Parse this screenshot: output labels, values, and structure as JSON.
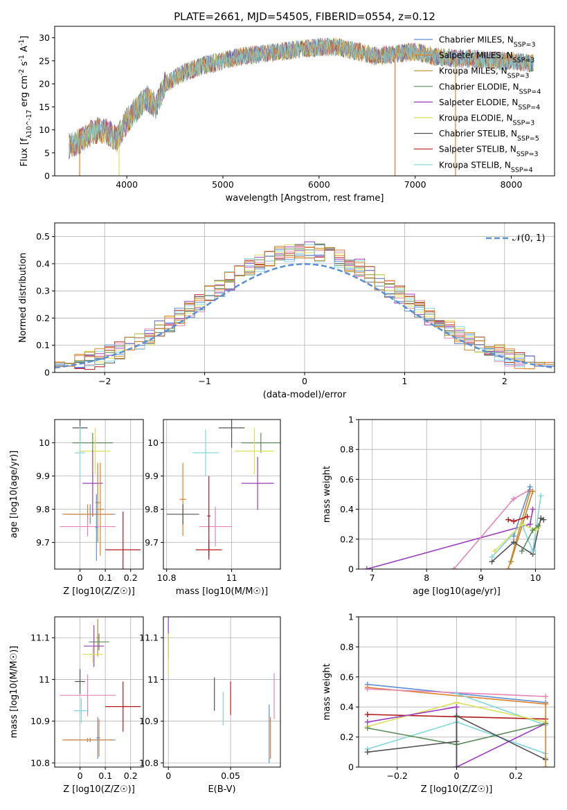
{
  "figure": {
    "title": "PLATE=2661, MJD=54505, FIBERID=0554, z=0.12"
  },
  "colors": [
    "#5b8fd6",
    "#e0802a",
    "#b8862b",
    "#5b8a5b",
    "#9a3bbf",
    "#d8e058",
    "#505050",
    "#b01818",
    "#7fd6dc",
    "#e684b8"
  ],
  "chart_data": [
    {
      "type": "line",
      "id": "spectrum",
      "xlabel": "wavelength [Angstrom, rest frame]",
      "ylabel": "Flux [f_λ10^-17 erg cm^-2 s^-1 A^-1]",
      "xlim": [
        3250,
        8450
      ],
      "ylim": [
        0,
        32.5
      ],
      "xticks": [
        4000,
        5000,
        6000,
        7000,
        8000
      ],
      "yticks": [
        0,
        5,
        10,
        15,
        20,
        25,
        30
      ],
      "continuum": {
        "x": [
          3400,
          3500,
          3600,
          3700,
          3800,
          3900,
          4000,
          4100,
          4200,
          4300,
          4400,
          4600,
          4800,
          5000,
          5200,
          5400,
          5600,
          5800,
          6000,
          6200,
          6400,
          6600,
          6800,
          7000,
          7200,
          7400,
          7600,
          7800,
          8000,
          8200
        ],
        "y": [
          6.5,
          7.5,
          9,
          10,
          9.5,
          8,
          12,
          14.5,
          17,
          15,
          20,
          22.5,
          24,
          25,
          26,
          26.5,
          27,
          27.5,
          28,
          28,
          27,
          26,
          26.5,
          27,
          26,
          25.5,
          25.5,
          25,
          25,
          24.5
        ]
      },
      "legend": [
        "Chabrier MILES, N_SSP=3",
        "Salpeter MILES, N_SSP=3",
        "Kroupa MILES, N_SSP=3",
        "Chabrier ELODIE, N_SSP=4",
        "Salpeter ELODIE, N_SSP=4",
        "Kroupa ELODIE, N_SSP=3",
        "Chabrier STELIB, N_SSP=5",
        "Salpeter STELIB, N_SSP=3",
        "Kroupa STELIB, N_SSP=4"
      ],
      "legend_position": "upper-right"
    },
    {
      "type": "histogram",
      "id": "residuals",
      "xlabel": "(data-model)/error",
      "ylabel": "Normed distribution",
      "xlim": [
        -2.5,
        2.5
      ],
      "ylim": [
        0,
        0.55
      ],
      "xticks": [
        -2,
        -1,
        0,
        1,
        2
      ],
      "yticks": [
        0.0,
        0.1,
        0.2,
        0.3,
        0.4,
        0.5
      ],
      "bin_width": 0.1,
      "reference_curve": "𝒩(0, 1)",
      "legend_position": "upper-right"
    },
    {
      "type": "scatter-errorbar",
      "id": "Z-age",
      "xlabel": "Z [log10(Z/Z☉)]",
      "ylabel": "age  [log10(age/yr)]",
      "xlim": [
        -0.1,
        0.25
      ],
      "ylim": [
        9.62,
        10.07
      ],
      "xticks": [
        0.0,
        0.1,
        0.2
      ],
      "yticks": [
        9.7,
        9.8,
        9.9,
        10.0
      ],
      "points": [
        {
          "x": 0.0,
          "y": 10.045,
          "xerr": 0.03,
          "yerr": 0.045,
          "c": 6
        },
        {
          "x": 0.05,
          "y": 10.0,
          "xerr": 0.08,
          "yerr": 0.03,
          "c": 3
        },
        {
          "x": 0.0,
          "y": 9.97,
          "xerr": 0.02,
          "yerr": 0.08,
          "c": 8
        },
        {
          "x": 0.06,
          "y": 9.975,
          "xerr": 0.06,
          "yerr": 0.07,
          "c": 5
        },
        {
          "x": 0.05,
          "y": 9.878,
          "xerr": 0.04,
          "yerr": 0.1,
          "c": 4
        },
        {
          "x": 0.08,
          "y": 9.8,
          "xerr": 0.015,
          "yerr": 0.14,
          "c": 1
        },
        {
          "x": 0.07,
          "y": 9.82,
          "xerr": 0.01,
          "yerr": 0.12,
          "c": 2
        },
        {
          "x": 0.04,
          "y": 9.785,
          "xerr": 0.1,
          "yerr": 0.03,
          "c": 0
        },
        {
          "x": 0.03,
          "y": 9.785,
          "xerr": 0.1,
          "yerr": 0.03,
          "c": 1
        },
        {
          "x": 0.03,
          "y": 9.748,
          "xerr": 0.11,
          "yerr": 0.03,
          "c": 9
        },
        {
          "x": 0.17,
          "y": 9.678,
          "xerr": 0.07,
          "yerr": 0.115,
          "c": 7
        },
        {
          "x": 0.065,
          "y": 9.745,
          "xerr": 0.005,
          "yerr": 0.1,
          "c": 0
        }
      ]
    },
    {
      "type": "scatter-errorbar",
      "id": "mass-age",
      "xlabel": "mass [log10(M/M☉)]",
      "ylabel": "",
      "xlim": [
        10.79,
        11.15
      ],
      "ylim": [
        9.62,
        10.07
      ],
      "xticks": [
        10.8,
        11.0
      ],
      "yticks": [
        9.7,
        9.8,
        9.9,
        10.0
      ],
      "points": [
        {
          "x": 11.0,
          "y": 10.045,
          "xerr": 0.04,
          "yerr": 0.06,
          "c": 6
        },
        {
          "x": 11.09,
          "y": 10.0,
          "xerr": 0.06,
          "yerr": 0.03,
          "c": 3
        },
        {
          "x": 10.92,
          "y": 9.97,
          "xerr": 0.04,
          "yerr": 0.07,
          "c": 8
        },
        {
          "x": 11.07,
          "y": 9.975,
          "xerr": 0.06,
          "yerr": 0.07,
          "c": 5
        },
        {
          "x": 11.08,
          "y": 9.878,
          "xerr": 0.05,
          "yerr": 0.08,
          "c": 4
        },
        {
          "x": 10.85,
          "y": 9.83,
          "xerr": 0.01,
          "yerr": 0.11,
          "c": 1
        },
        {
          "x": 10.85,
          "y": 9.785,
          "xerr": 0.05,
          "yerr": 0.03,
          "c": 6
        },
        {
          "x": 10.95,
          "y": 9.748,
          "xerr": 0.05,
          "yerr": 0.06,
          "c": 9
        },
        {
          "x": 10.93,
          "y": 9.78,
          "xerr": 0.005,
          "yerr": 0.12,
          "c": 7
        },
        {
          "x": 10.93,
          "y": 9.678,
          "xerr": 0.04,
          "yerr": 0.03,
          "c": 7
        }
      ]
    },
    {
      "type": "line",
      "id": "age-massweight",
      "xlabel": "age  [log10(age/yr)]",
      "ylabel": "mass weight",
      "xlim": [
        6.75,
        10.35
      ],
      "ylim": [
        0,
        1.0
      ],
      "xticks": [
        7,
        8,
        9,
        10
      ],
      "yticks": [
        0.0,
        0.2,
        0.4,
        0.6,
        0.8,
        1.0
      ],
      "series": [
        {
          "c": 4,
          "x": [
            6.9,
            9.9,
            9.95
          ],
          "y": [
            0.0,
            0.3,
            0.4
          ]
        },
        {
          "c": 9,
          "x": [
            8.5,
            9.6,
            9.9
          ],
          "y": [
            0.0,
            0.47,
            0.53
          ]
        },
        {
          "c": 1,
          "x": [
            9.5,
            9.9
          ],
          "y": [
            0.0,
            0.52
          ]
        },
        {
          "c": 2,
          "x": [
            9.55,
            9.95
          ],
          "y": [
            0.05,
            0.52
          ]
        },
        {
          "c": 0,
          "x": [
            9.6,
            9.9
          ],
          "y": [
            0.22,
            0.55
          ]
        },
        {
          "c": 7,
          "x": [
            9.5,
            9.6,
            9.85
          ],
          "y": [
            0.33,
            0.32,
            0.35
          ]
        },
        {
          "c": 6,
          "x": [
            9.2,
            9.6,
            9.95,
            10.1,
            10.15
          ],
          "y": [
            0.05,
            0.18,
            0.1,
            0.34,
            0.33
          ]
        },
        {
          "c": 8,
          "x": [
            9.2,
            9.75,
            9.95,
            10.1
          ],
          "y": [
            0.08,
            0.3,
            0.12,
            0.49
          ]
        },
        {
          "c": 5,
          "x": [
            9.25,
            9.75,
            10.0,
            10.05
          ],
          "y": [
            0.12,
            0.3,
            0.26,
            0.28
          ]
        },
        {
          "c": 3,
          "x": [
            9.75,
            9.95,
            10.05
          ],
          "y": [
            0.12,
            0.26,
            0.29
          ]
        }
      ]
    },
    {
      "type": "scatter-errorbar",
      "id": "Z-mass",
      "xlabel": "Z [log10(Z/Z☉)]",
      "ylabel": "mass [log10(M/M☉)]",
      "xlim": [
        -0.1,
        0.25
      ],
      "ylim": [
        10.79,
        11.15
      ],
      "xticks": [
        0.0,
        0.1,
        0.2
      ],
      "yticks": [
        10.8,
        10.9,
        11.0,
        11.1
      ],
      "points": [
        {
          "x": 0.07,
          "y": 11.1,
          "xerr": 0.005,
          "yerr": 0.045,
          "c": 2
        },
        {
          "x": 0.075,
          "y": 11.09,
          "xerr": 0.04,
          "yerr": 0.02,
          "c": 3
        },
        {
          "x": 0.055,
          "y": 11.08,
          "xerr": 0.04,
          "yerr": 0.05,
          "c": 4
        },
        {
          "x": 0.05,
          "y": 11.06,
          "xerr": 0.04,
          "yerr": 0.02,
          "c": 5
        },
        {
          "x": 0.0,
          "y": 10.995,
          "xerr": 0.02,
          "yerr": 0.03,
          "c": 6
        },
        {
          "x": 0.03,
          "y": 10.962,
          "xerr": 0.11,
          "yerr": 0.05,
          "c": 9
        },
        {
          "x": 0.17,
          "y": 10.935,
          "xerr": 0.07,
          "yerr": 0.06,
          "c": 7
        },
        {
          "x": 0.005,
          "y": 10.925,
          "xerr": 0.03,
          "yerr": 0.03,
          "c": 8
        },
        {
          "x": 0.075,
          "y": 10.86,
          "xerr": 0.005,
          "yerr": 0.045,
          "c": 1
        },
        {
          "x": 0.04,
          "y": 10.855,
          "xerr": 0.1,
          "yerr": 0.005,
          "c": 0
        },
        {
          "x": 0.03,
          "y": 10.855,
          "xerr": 0.1,
          "yerr": 0.005,
          "c": 1
        },
        {
          "x": 0.07,
          "y": 10.86,
          "xerr": 0.005,
          "yerr": 0.05,
          "c": 0
        }
      ]
    },
    {
      "type": "scatter-errorbar",
      "id": "EBV-mass",
      "xlabel": "E(B-V)",
      "ylabel": "",
      "xlim": [
        -0.004,
        0.09
      ],
      "ylim": [
        10.79,
        11.15
      ],
      "xticks": [
        0.0,
        0.05
      ],
      "yticks": [
        10.8,
        10.9,
        11.0,
        11.1
      ],
      "points": [
        {
          "x": 0.0,
          "y": 11.1,
          "xerr": 0,
          "yerr": 0.05,
          "c": 4
        },
        {
          "x": 0.0,
          "y": 11.06,
          "xerr": 0,
          "yerr": 0.05,
          "c": 5
        },
        {
          "x": 0.037,
          "y": 10.965,
          "xerr": 0,
          "yerr": 0.04,
          "c": 6
        },
        {
          "x": 0.044,
          "y": 10.93,
          "xerr": 0,
          "yerr": 0.04,
          "c": 8
        },
        {
          "x": 0.05,
          "y": 10.955,
          "xerr": 0,
          "yerr": 0.04,
          "c": 7
        },
        {
          "x": 0.085,
          "y": 10.96,
          "xerr": 0,
          "yerr": 0.055,
          "c": 9
        },
        {
          "x": 0.082,
          "y": 10.86,
          "xerr": 0,
          "yerr": 0.05,
          "c": 1
        },
        {
          "x": 0.081,
          "y": 10.87,
          "xerr": 0,
          "yerr": 0.07,
          "c": 0
        }
      ]
    },
    {
      "type": "line",
      "id": "Z-massweight",
      "xlabel": "Z [log10(Z/Z☉)]",
      "ylabel": "mass weight",
      "xlim": [
        -0.33,
        0.33
      ],
      "ylim": [
        0,
        1.0
      ],
      "xticks": [
        -0.2,
        0.0,
        0.2
      ],
      "yticks": [
        0.0,
        0.2,
        0.4,
        0.6,
        0.8,
        1.0
      ],
      "series": [
        {
          "c": 0,
          "x": [
            -0.3,
            0.3
          ],
          "y": [
            0.55,
            0.43
          ]
        },
        {
          "c": 1,
          "x": [
            -0.3,
            0.3
          ],
          "y": [
            0.53,
            0.42
          ]
        },
        {
          "c": 9,
          "x": [
            -0.3,
            0.3
          ],
          "y": [
            0.52,
            0.47
          ]
        },
        {
          "c": 8,
          "x": [
            -0.3,
            0.0,
            0.3,
            0.3
          ],
          "y": [
            0.12,
            0.3,
            0.09,
            0.06
          ]
        },
        {
          "c": 8,
          "x": [
            0.0,
            0.3
          ],
          "y": [
            0.49,
            0.28
          ]
        },
        {
          "c": 7,
          "x": [
            -0.3,
            0.3
          ],
          "y": [
            0.35,
            0.32
          ]
        },
        {
          "c": 5,
          "x": [
            -0.3,
            0.0,
            0.3
          ],
          "y": [
            0.27,
            0.43,
            0.3
          ]
        },
        {
          "c": 4,
          "x": [
            -0.3,
            0.0,
            0.0,
            0.3
          ],
          "y": [
            0.3,
            0.4,
            0.0,
            0.29
          ]
        },
        {
          "c": 3,
          "x": [
            -0.3,
            0.0,
            0.3
          ],
          "y": [
            0.26,
            0.15,
            0.29
          ]
        },
        {
          "c": 6,
          "x": [
            -0.3,
            0.0,
            0.0,
            0.3
          ],
          "y": [
            0.1,
            0.17,
            0.34,
            0.05
          ]
        },
        {
          "c": 1,
          "x": [
            0.3,
            0.3
          ],
          "y": [
            0.0,
            0.42
          ]
        },
        {
          "c": 6,
          "x": [
            0.0,
            0.0
          ],
          "y": [
            0.0,
            0.34
          ]
        }
      ]
    }
  ]
}
